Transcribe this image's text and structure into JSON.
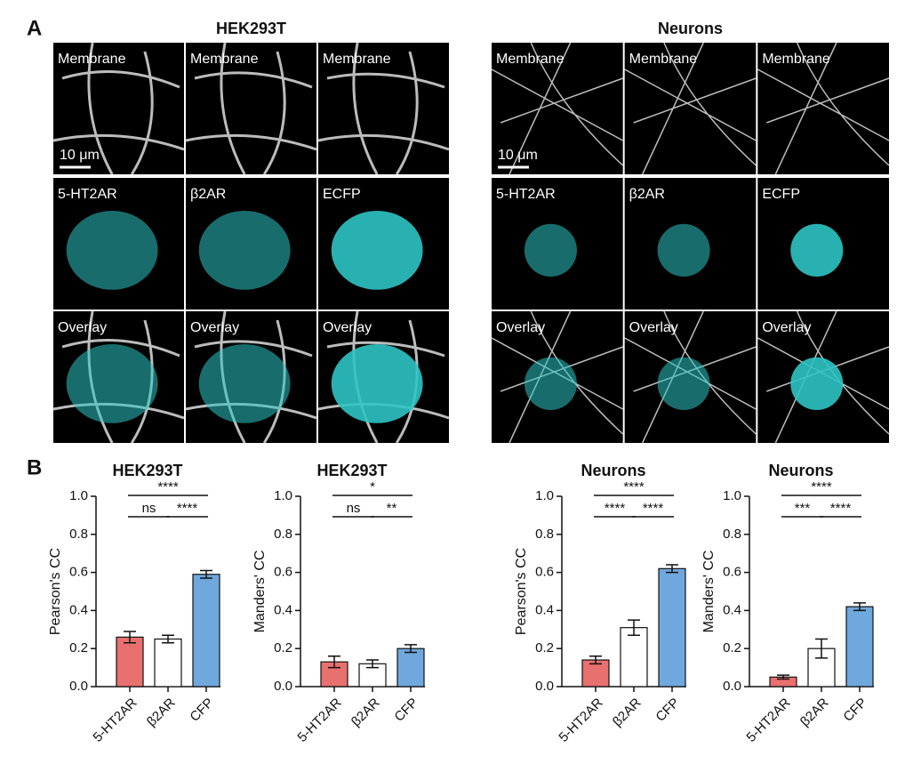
{
  "panel_a": {
    "label": "A",
    "groups": [
      {
        "title": "HEK293T",
        "rows": [
          [
            "Membrane",
            "Membrane",
            "Membrane"
          ],
          [
            "5-HT2AR",
            "β2AR",
            "ECFP"
          ],
          [
            "Overlay",
            "Overlay",
            "Overlay"
          ]
        ],
        "scale_bar": "10 μm"
      },
      {
        "title": "Neurons",
        "rows": [
          [
            "Membrane",
            "Membrane",
            "Membrane"
          ],
          [
            "5-HT2AR",
            "β2AR",
            "ECFP"
          ],
          [
            "Overlay",
            "Overlay",
            "Overlay"
          ]
        ],
        "scale_bar": "10 μm"
      }
    ]
  },
  "panel_b": {
    "label": "B"
  },
  "chart_data": [
    {
      "type": "bar",
      "title": "HEK293T",
      "ylabel": "Pearson's CC",
      "categories": [
        "5-HT2AR",
        "β2AR",
        "CFP"
      ],
      "values": [
        0.26,
        0.25,
        0.59
      ],
      "errors": [
        0.03,
        0.02,
        0.02
      ],
      "colors": [
        "#e8706f",
        "#ffffff",
        "#6fa8dc"
      ],
      "ylim": [
        0,
        1
      ],
      "yticks": [
        {
          "value": 0,
          "label": "0.0"
        },
        0.2,
        0.4,
        0.6,
        0.8,
        {
          "value": 1,
          "label": "1.0"
        }
      ],
      "significance": [
        {
          "from": 0,
          "to": 1,
          "label": "ns"
        },
        {
          "from": 1,
          "to": 2,
          "label": "****"
        },
        {
          "from": 0,
          "to": 2,
          "label": "****"
        }
      ]
    },
    {
      "type": "bar",
      "title": "HEK293T",
      "ylabel": "Manders' CC",
      "categories": [
        "5-HT2AR",
        "β2AR",
        "CFP"
      ],
      "values": [
        0.13,
        0.12,
        0.2
      ],
      "errors": [
        0.03,
        0.02,
        0.02
      ],
      "colors": [
        "#e8706f",
        "#ffffff",
        "#6fa8dc"
      ],
      "ylim": [
        0,
        1
      ],
      "yticks": [
        {
          "value": 0,
          "label": "0.0"
        },
        0.2,
        0.4,
        0.6,
        0.8,
        {
          "value": 1,
          "label": "1.0"
        }
      ],
      "significance": [
        {
          "from": 0,
          "to": 1,
          "label": "ns"
        },
        {
          "from": 1,
          "to": 2,
          "label": "**"
        },
        {
          "from": 0,
          "to": 2,
          "label": "*"
        }
      ]
    },
    {
      "type": "bar",
      "title": "Neurons",
      "ylabel": "Pearson's CC",
      "categories": [
        "5-HT2AR",
        "β2AR",
        "CFP"
      ],
      "values": [
        0.14,
        0.31,
        0.62
      ],
      "errors": [
        0.02,
        0.04,
        0.02
      ],
      "colors": [
        "#e8706f",
        "#ffffff",
        "#6fa8dc"
      ],
      "ylim": [
        0,
        1
      ],
      "yticks": [
        {
          "value": 0,
          "label": "0.0"
        },
        0.2,
        0.4,
        0.6,
        0.8,
        {
          "value": 1,
          "label": "1.0"
        }
      ],
      "significance": [
        {
          "from": 0,
          "to": 1,
          "label": "****"
        },
        {
          "from": 1,
          "to": 2,
          "label": "****"
        },
        {
          "from": 0,
          "to": 2,
          "label": "****"
        }
      ]
    },
    {
      "type": "bar",
      "title": "Neurons",
      "ylabel": "Manders' CC",
      "categories": [
        "5-HT2AR",
        "β2AR",
        "CFP"
      ],
      "values": [
        0.05,
        0.2,
        0.42
      ],
      "errors": [
        0.01,
        0.05,
        0.02
      ],
      "colors": [
        "#e8706f",
        "#ffffff",
        "#6fa8dc"
      ],
      "ylim": [
        0,
        1
      ],
      "yticks": [
        {
          "value": 0,
          "label": "0.0"
        },
        0.2,
        0.4,
        0.6,
        0.8,
        {
          "value": 1,
          "label": "1.0"
        }
      ],
      "significance": [
        {
          "from": 0,
          "to": 1,
          "label": "***"
        },
        {
          "from": 1,
          "to": 2,
          "label": "****"
        },
        {
          "from": 0,
          "to": 2,
          "label": "****"
        }
      ]
    }
  ]
}
